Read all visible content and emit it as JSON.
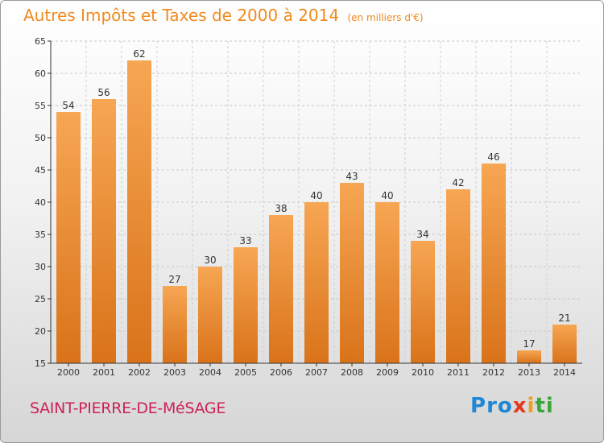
{
  "header": {
    "title": "Autres Impôts et Taxes de 2000 à 2014",
    "unit": "(en milliers d'€)"
  },
  "footer": {
    "commune": "SAINT-PIERRE-DE-MéSAGE",
    "logo_letters": [
      {
        "ch": "P",
        "color": "#1e88d6"
      },
      {
        "ch": "r",
        "color": "#1e88d6"
      },
      {
        "ch": "o",
        "color": "#1e88d6"
      },
      {
        "ch": "x",
        "color": "#e23a1e"
      },
      {
        "ch": "i",
        "color": "#f0a020"
      },
      {
        "ch": "t",
        "color": "#3aa63a"
      },
      {
        "ch": "i",
        "color": "#3aa63a"
      }
    ]
  },
  "chart_data": {
    "type": "bar",
    "categories": [
      "2000",
      "2001",
      "2002",
      "2003",
      "2004",
      "2005",
      "2006",
      "2007",
      "2008",
      "2009",
      "2010",
      "2011",
      "2012",
      "2013",
      "2014"
    ],
    "values": [
      54,
      56,
      62,
      27,
      30,
      33,
      38,
      40,
      43,
      40,
      34,
      42,
      46,
      17,
      21
    ],
    "ylim": [
      15,
      65
    ],
    "yticks": [
      15,
      20,
      25,
      30,
      35,
      40,
      45,
      50,
      55,
      60,
      65
    ],
    "grid": true,
    "bar_color_top": "#f7a653",
    "bar_color_bottom": "#d9731a",
    "axis_color": "#333333"
  }
}
